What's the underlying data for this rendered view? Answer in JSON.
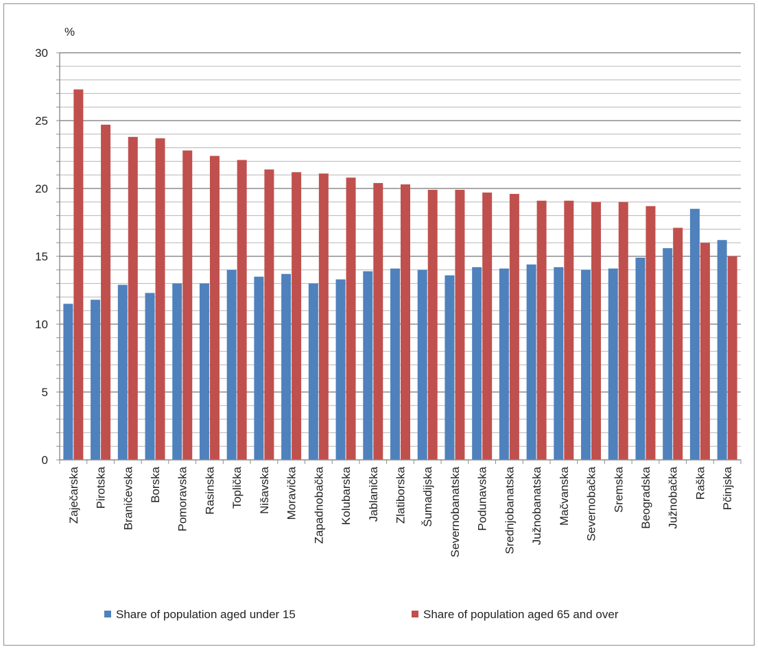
{
  "chart_data": {
    "type": "bar",
    "ylabel": "%",
    "ylim": [
      0,
      30
    ],
    "yticks": [
      0,
      5,
      10,
      15,
      20,
      25,
      30
    ],
    "grid": true,
    "legend_position": "bottom",
    "categories": [
      "Zaječarska",
      "Pirotska",
      "Braničevska",
      "Borska",
      "Pomoravska",
      "Rasinska",
      "Toplička",
      "Nišavska",
      "Moravička",
      "Zapadnobačka",
      "Kolubarska",
      "Jablanička",
      "Zlatiborska",
      "Šumadijska",
      "Severnobanatska",
      "Podunavska",
      "Srednjobanatska",
      "Južnobanatska",
      "Mačvanska",
      "Severnobačka",
      "Sremska",
      "Beogradska",
      "Južnobačka",
      "Raška",
      "Pčinjska"
    ],
    "series": [
      {
        "name": "Share of population aged under 15",
        "color": "#4f81bd",
        "values": [
          11.5,
          11.8,
          12.9,
          12.3,
          13.0,
          13.0,
          14.0,
          13.5,
          13.7,
          13.0,
          13.3,
          13.9,
          14.1,
          14.0,
          13.6,
          14.2,
          14.1,
          14.4,
          14.2,
          14.0,
          14.1,
          14.9,
          15.6,
          18.5,
          16.2
        ]
      },
      {
        "name": "Share of population aged 65 and over",
        "color": "#c0504d",
        "values": [
          27.3,
          24.7,
          23.8,
          23.7,
          22.8,
          22.4,
          22.1,
          21.4,
          21.2,
          21.1,
          20.8,
          20.4,
          20.3,
          19.9,
          19.9,
          19.7,
          19.6,
          19.1,
          19.1,
          19.0,
          19.0,
          18.7,
          17.1,
          16.0,
          15.0
        ]
      }
    ]
  }
}
